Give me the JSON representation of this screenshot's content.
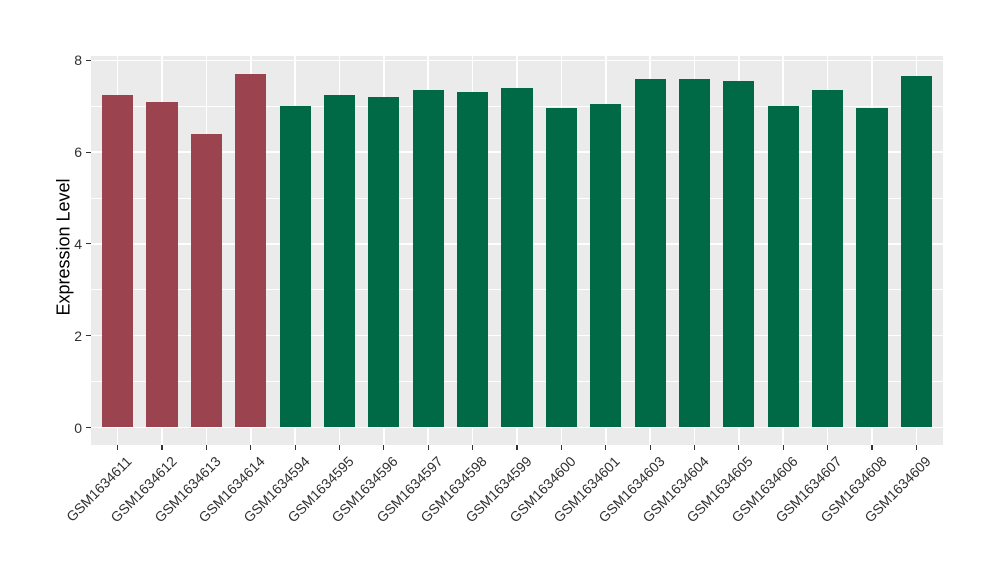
{
  "chart_data": {
    "type": "bar",
    "title": "",
    "xlabel": "",
    "ylabel": "Expression Level",
    "ylim": [
      0,
      8
    ],
    "yticks": [
      0,
      2,
      4,
      6,
      8
    ],
    "yminor_gridlines": [
      1,
      3,
      5,
      7
    ],
    "grid": "major and minor horizontal white lines, major vertical white lines at each category, gray panel",
    "legend": "none",
    "categories": [
      "GSM1634611",
      "GSM1634612",
      "GSM1634613",
      "GSM1634614",
      "GSM1634594",
      "GSM1634595",
      "GSM1634596",
      "GSM1634597",
      "GSM1634598",
      "GSM1634599",
      "GSM1634600",
      "GSM1634601",
      "GSM1634603",
      "GSM1634604",
      "GSM1634605",
      "GSM1634606",
      "GSM1634607",
      "GSM1634608",
      "GSM1634609"
    ],
    "values": [
      7.25,
      7.1,
      6.4,
      7.7,
      7.0,
      7.25,
      7.2,
      7.35,
      7.3,
      7.4,
      6.95,
      7.05,
      7.6,
      7.6,
      7.55,
      7.0,
      7.35,
      6.95,
      7.65
    ],
    "bar_groups": [
      "group1",
      "group1",
      "group1",
      "group1",
      "group2",
      "group2",
      "group2",
      "group2",
      "group2",
      "group2",
      "group2",
      "group2",
      "group2",
      "group2",
      "group2",
      "group2",
      "group2",
      "group2",
      "group2"
    ],
    "group_colors": {
      "group1": "#9B4450",
      "group2": "#006946"
    },
    "panel_bg": "#EBEBEB",
    "grid_color": "#FFFFFF",
    "axis_text_color": "#303030",
    "tick_mark_color": "#333333"
  }
}
